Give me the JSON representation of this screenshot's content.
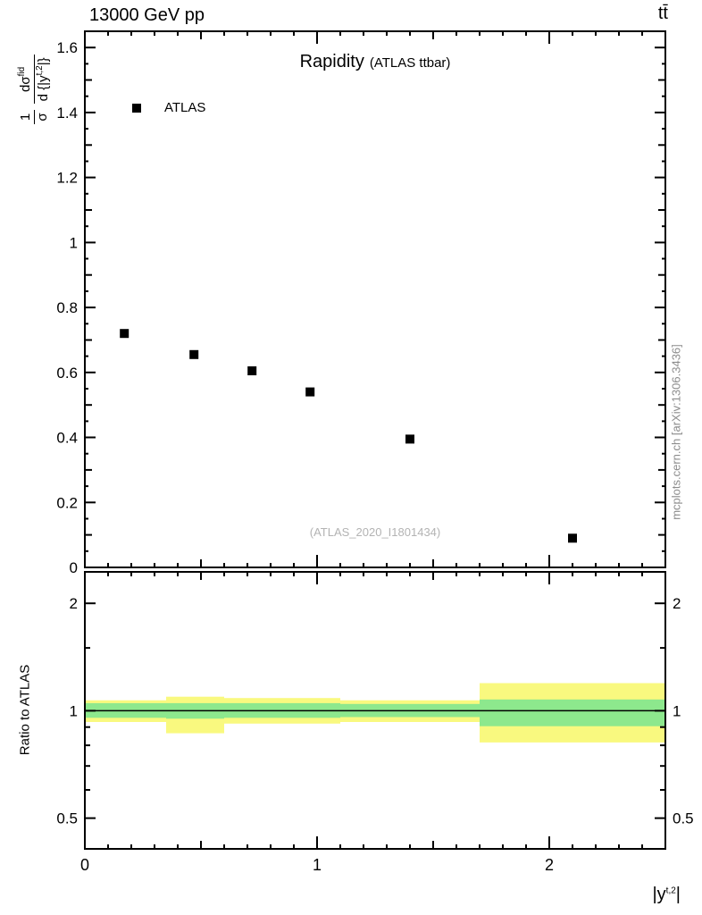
{
  "header": {
    "left": "13000 GeV pp",
    "right": "tt̄"
  },
  "main": {
    "title": "Rapidity",
    "subtitle": "(ATLAS ttbar)",
    "legend_label": "ATLAS",
    "watermark": "(ATLAS_2020_I1801434)",
    "side_note": "mcplots.cern.ch [arXiv:1306.3436]",
    "ylabel": {
      "f1num": "1",
      "f1den": "σ",
      "f2num_base": "dσ",
      "f2num_sup": "fid",
      "f2den_base": "d {|y",
      "f2den_sup": "t,2",
      "f2den_close": "|}"
    }
  },
  "ratio": {
    "ylabel": "Ratio to ATLAS"
  },
  "xaxis": {
    "label_base": "|y",
    "label_sup": "t,2",
    "label_close": "|"
  },
  "chart_data": {
    "type": "scatter",
    "title": "Rapidity (ATLAS ttbar)",
    "xlabel": "|y^{t,2}|",
    "xlim": [
      0,
      2.5
    ],
    "xticks": [
      {
        "v": 0,
        "label": "0"
      },
      {
        "v": 1,
        "label": "1"
      },
      {
        "v": 2,
        "label": "2"
      }
    ],
    "main": {
      "ylabel": "1/σ dσ^{fid}/d{|y^{t,2}|}",
      "ylim": [
        0,
        1.65
      ],
      "yticks": [
        {
          "v": 0,
          "label": "0"
        },
        {
          "v": 0.2,
          "label": "0.2"
        },
        {
          "v": 0.4,
          "label": "0.4"
        },
        {
          "v": 0.6,
          "label": "0.6"
        },
        {
          "v": 0.8,
          "label": "0.8"
        },
        {
          "v": 1,
          "label": "1"
        },
        {
          "v": 1.2,
          "label": "1.2"
        },
        {
          "v": 1.4,
          "label": "1.4"
        },
        {
          "v": 1.6,
          "label": "1.6"
        }
      ],
      "series": [
        {
          "name": "ATLAS",
          "marker": "filled-square",
          "color": "#000000",
          "x": [
            0.17,
            0.47,
            0.72,
            0.97,
            1.4,
            2.1
          ],
          "y": [
            0.72,
            0.655,
            0.605,
            0.54,
            0.395,
            0.09
          ]
        }
      ]
    },
    "ratio": {
      "ylabel": "Ratio to ATLAS",
      "yscale": "log",
      "ylim": [
        0.41,
        2.45
      ],
      "yticks": [
        {
          "v": 0.5,
          "label": "0.5"
        },
        {
          "v": 1,
          "label": "1"
        },
        {
          "v": 2,
          "label": "2"
        }
      ],
      "yminors": [
        0.6,
        0.7,
        0.8,
        0.9,
        1.5
      ],
      "reference_line": 1,
      "band_colors": {
        "outer": "#f9f97f",
        "inner": "#8de88d"
      },
      "bands": [
        {
          "x0": 0.0,
          "x1": 0.35,
          "yellow": [
            0.93,
            1.07
          ],
          "green": [
            0.955,
            1.05
          ]
        },
        {
          "x0": 0.35,
          "x1": 0.6,
          "yellow": [
            0.865,
            1.095
          ],
          "green": [
            0.95,
            1.05
          ]
        },
        {
          "x0": 0.6,
          "x1": 1.1,
          "yellow": [
            0.92,
            1.085
          ],
          "green": [
            0.955,
            1.05
          ]
        },
        {
          "x0": 1.1,
          "x1": 1.7,
          "yellow": [
            0.93,
            1.07
          ],
          "green": [
            0.96,
            1.045
          ]
        },
        {
          "x0": 1.7,
          "x1": 2.5,
          "yellow": [
            0.815,
            1.195
          ],
          "green": [
            0.905,
            1.075
          ]
        }
      ]
    }
  }
}
